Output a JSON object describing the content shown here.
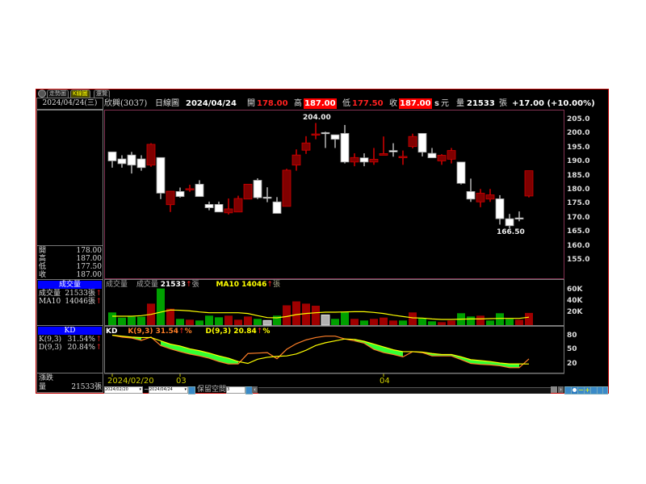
{
  "tabs": [
    {
      "label": "走勢圖",
      "active": false
    },
    {
      "label": "K線圖",
      "active": true
    },
    {
      "label": "還覽",
      "active": false
    }
  ],
  "left": {
    "date": "2024/04/24(三)",
    "ohlc": [
      {
        "label": "開",
        "value": "178.00"
      },
      {
        "label": "高",
        "value": "187.00"
      },
      {
        "label": "低",
        "value": "177.50"
      },
      {
        "label": "收",
        "value": "187.00"
      }
    ],
    "volume_title": "成交量",
    "volume_rows": [
      {
        "label": "成交量",
        "value": "21533張",
        "arrow": "↑"
      },
      {
        "label": "MA10",
        "value": "14046張",
        "arrow": "↑"
      }
    ],
    "kd_title": "KD",
    "kd_rows": [
      {
        "label": "K(9,3)",
        "value": "31.54%",
        "arrow": "↑"
      },
      {
        "label": "D(9,3)",
        "value": "20.84%",
        "arrow": "↑"
      }
    ],
    "change_label": "漲跌",
    "qty_label": "量",
    "qty_value": "21533張"
  },
  "header": {
    "stock": "欣興(3037)",
    "chart_type": "日線圖",
    "date": "2024/04/24",
    "open_label": "開",
    "open": "178.00",
    "high_label": "高",
    "high": "187.00",
    "low_label": "低",
    "low": "177.50",
    "close_label": "收",
    "close": "187.00",
    "s": "s",
    "unit": "元",
    "vol_label": "量",
    "vol": "21533",
    "vol_unit": "張",
    "change": "+17.00 (+10.00%)"
  },
  "volume_header": {
    "label": "成交量",
    "vol_label": "成交量",
    "vol": "21533",
    "arrow": "↑",
    "unit": "張",
    "ma_text": "MA10 14046",
    "ma_arrow": "↑",
    "ma_unit": "張"
  },
  "kd_header": {
    "label": "KD",
    "k_text": "K(9,3) 31.54",
    "k_arrow": "↑",
    "k_unit": "%",
    "d_text": "D(9,3) 20.84",
    "d_arrow": "↑",
    "d_unit": "%"
  },
  "annotations": {
    "high": "204.00",
    "low": "166.50"
  },
  "x_labels": [
    "2024/02/20",
    "03",
    "04"
  ],
  "toolbar": {
    "from": "2024/02/20",
    "tilde": "~",
    "to": "2024/04/24",
    "reserve_label": "保留空間",
    "reserve_value": "3"
  },
  "colors": {
    "up": "#800000",
    "up_edge": "#d00000",
    "down": "#ffffff",
    "vol_up": "#a00000",
    "vol_down": "#00a000",
    "vol_flat": "#b0b0b0",
    "ma10": "#ffff00",
    "k": "#ff7f27",
    "d": "#ffff00",
    "frame": "#c00000"
  },
  "chart_data": [
    {
      "type": "candlestick",
      "yticks": [
        "205.0",
        "200.0",
        "195.0",
        "190.0",
        "185.0",
        "180.0",
        "175.0",
        "170.0",
        "165.0",
        "160.0",
        "155.0"
      ],
      "ylim": [
        150,
        207
      ],
      "candles": [
        [
          193.7,
          193.7,
          188.1,
          190.5
        ],
        [
          191.2,
          192.5,
          188.1,
          189.5
        ],
        [
          192.6,
          193.7,
          186.0,
          189.0
        ],
        [
          191.2,
          192.5,
          187.0,
          188.1
        ],
        [
          189.0,
          196.8,
          188.4,
          196.4
        ],
        [
          191.7,
          191.7,
          176.9,
          179.0
        ],
        [
          174.9,
          179.7,
          172.3,
          179.7
        ],
        [
          179.6,
          181.0,
          177.4,
          177.8
        ],
        [
          180.3,
          182.0,
          179.5,
          180.6
        ],
        [
          182.2,
          183.6,
          177.8,
          177.8
        ],
        [
          175.0,
          176.0,
          172.9,
          173.8
        ],
        [
          175.0,
          176.0,
          172.3,
          172.3
        ],
        [
          172.0,
          177.1,
          171.4,
          173.4
        ],
        [
          172.3,
          178.1,
          172.3,
          177.1
        ],
        [
          176.9,
          182.2,
          176.9,
          182.2
        ],
        [
          183.6,
          184.3,
          176.9,
          177.4
        ],
        [
          177.6,
          181.1,
          175.8,
          177.6
        ],
        [
          175.9,
          177.6,
          171.8,
          171.8
        ],
        [
          174.3,
          187.7,
          174.3,
          187.2
        ],
        [
          189.0,
          194.6,
          187.0,
          192.6
        ],
        [
          194.3,
          199.3,
          193.0,
          196.9
        ],
        [
          199.8,
          204.0,
          198.2,
          200.1
        ],
        [
          200.6,
          200.9,
          195.1,
          200.6
        ],
        [
          199.8,
          199.8,
          195.1,
          198.2
        ],
        [
          200.3,
          203.3,
          189.6,
          190.1
        ],
        [
          190.1,
          193.2,
          188.6,
          191.7
        ],
        [
          191.6,
          193.2,
          188.6,
          190.1
        ],
        [
          190.1,
          195.1,
          189.1,
          191.1
        ],
        [
          192.5,
          199.2,
          192.5,
          193.1
        ],
        [
          194.2,
          196.8,
          192.0,
          193.7
        ],
        [
          191.6,
          194.2,
          189.1,
          192.1
        ],
        [
          195.6,
          200.2,
          195.0,
          199.2
        ],
        [
          200.3,
          200.3,
          192.1,
          193.6
        ],
        [
          193.2,
          195.1,
          191.6,
          191.6
        ],
        [
          190.5,
          192.9,
          189.1,
          192.5
        ],
        [
          191.1,
          195.1,
          189.6,
          194.2
        ],
        [
          190.1,
          190.1,
          182.1,
          182.5
        ],
        [
          179.6,
          184.2,
          175.9,
          176.9
        ],
        [
          175.9,
          180.5,
          174.0,
          179.0
        ],
        [
          176.9,
          180.5,
          175.9,
          178.4
        ],
        [
          177.0,
          178.3,
          167.8,
          169.9
        ],
        [
          169.9,
          171.6,
          166.5,
          167.4
        ],
        [
          170.2,
          172.5,
          169.0,
          170.2
        ],
        [
          178.0,
          187.0,
          177.5,
          187.0
        ]
      ]
    },
    {
      "type": "bar",
      "yticks": [
        "60K",
        "40K",
        "20K"
      ],
      "unit": "張",
      "values": [
        22400,
        13300,
        14800,
        14800,
        38000,
        64800,
        29000,
        11000,
        9500,
        8100,
        16700,
        13800,
        16700,
        9500,
        15200,
        11000,
        8100,
        16700,
        35000,
        42000,
        38000,
        34300,
        18000,
        11000,
        22900,
        11000,
        8100,
        11000,
        13300,
        8100,
        8100,
        22400,
        12400,
        6700,
        5200,
        8100,
        21000,
        15200,
        16700,
        8100,
        21000,
        11000,
        9500,
        21533
      ],
      "colors": [
        "down",
        "down",
        "down",
        "down",
        "up",
        "down",
        "up",
        "down",
        "up",
        "down",
        "down",
        "down",
        "up",
        "up",
        "up",
        "down",
        "flat",
        "down",
        "up",
        "up",
        "up",
        "up",
        "flat",
        "down",
        "down",
        "up",
        "down",
        "up",
        "up",
        "up",
        "down",
        "up",
        "down",
        "down",
        "up",
        "up",
        "down",
        "down",
        "up",
        "down",
        "down",
        "down",
        "up",
        "up"
      ],
      "ma10": [
        15700,
        15700,
        15700,
        16700,
        19000,
        22900,
        26700,
        26200,
        25200,
        23300,
        21900,
        21900,
        21900,
        21900,
        20500,
        16700,
        13300,
        12900,
        15200,
        18600,
        20500,
        21900,
        22900,
        22900,
        23300,
        23800,
        23800,
        22400,
        20500,
        17600,
        15200,
        12900,
        12400,
        10900,
        10000,
        10000,
        10500,
        10900,
        10900,
        11400,
        11900,
        11900,
        11900,
        14046
      ]
    },
    {
      "type": "line",
      "yticks": [
        "80",
        "50",
        "20"
      ],
      "series": [
        {
          "name": "K(9,3)",
          "values": [
            82,
            78,
            76,
            71,
            78,
            60,
            53,
            47,
            42,
            38,
            33,
            26,
            21,
            21,
            43,
            44,
            45,
            32,
            52,
            64,
            72,
            77,
            80,
            80,
            74,
            70,
            65,
            52,
            45,
            41,
            36,
            47,
            45,
            38,
            38,
            38,
            30,
            22,
            20,
            19,
            17,
            13,
            13,
            31.54
          ]
        },
        {
          "name": "D(9,3)",
          "values": [
            82,
            80,
            78,
            77,
            77,
            70,
            63,
            59,
            53,
            49,
            44,
            38,
            33,
            26,
            22,
            31,
            35,
            37,
            38,
            42,
            50,
            60,
            66,
            70,
            74,
            73,
            69,
            63,
            57,
            51,
            47,
            47,
            46,
            43,
            41,
            41,
            36,
            30,
            28,
            26,
            23,
            21,
            21,
            20.84
          ]
        }
      ]
    }
  ]
}
